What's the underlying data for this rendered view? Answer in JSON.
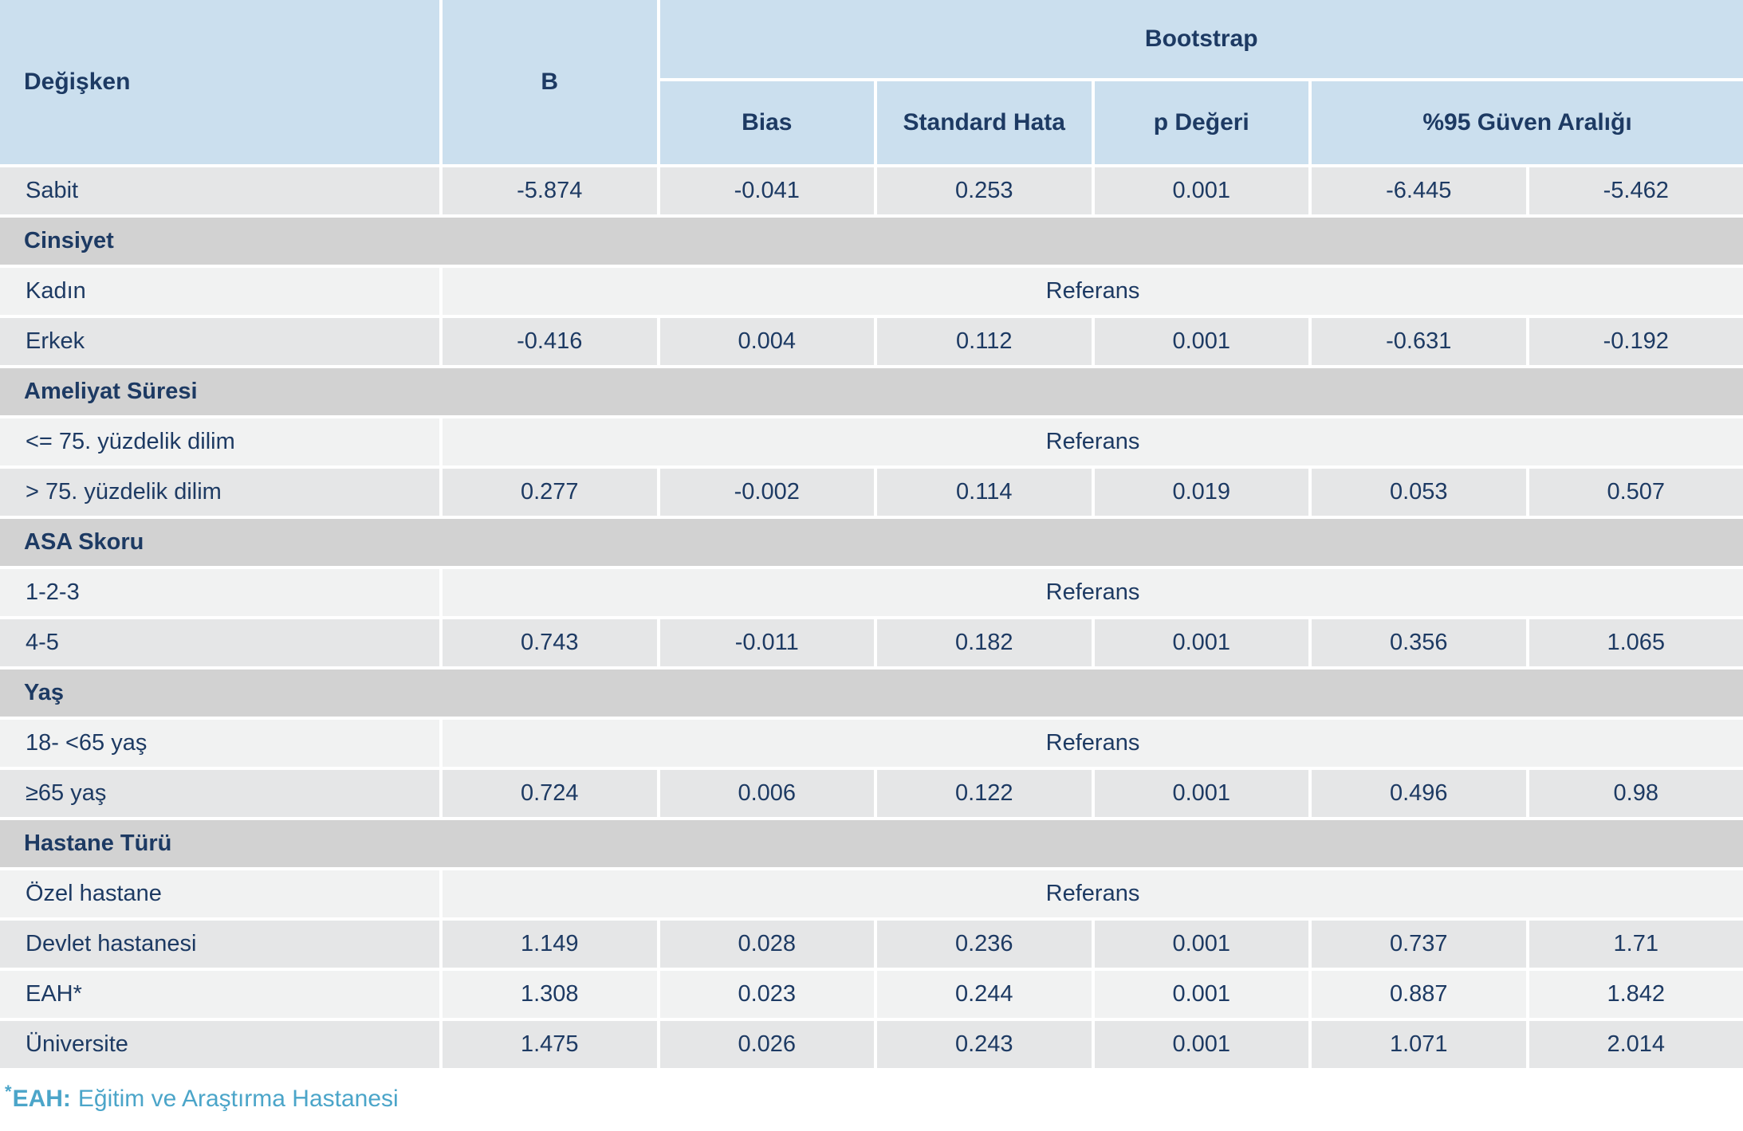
{
  "colors": {
    "header_bg": "#cbdfee",
    "section_bg": "#d2d2d2",
    "row_dark_bg": "#e5e6e7",
    "row_light_bg": "#f1f2f2",
    "text_navy": "#1d3a63",
    "footnote_blue": "#4ba5c9",
    "page_bg": "#ffffff"
  },
  "table": {
    "header": {
      "degisken": "Değişken",
      "b": "B",
      "bootstrap": "Bootstrap",
      "bias": "Bias",
      "standard_hata": "Standard Hata",
      "p_degeri": "p Değeri",
      "ci": "%95 Güven Aralığı"
    },
    "reference_label": "Referans",
    "rows": [
      {
        "type": "data",
        "label": "Sabit",
        "values": [
          "-5.874",
          "-0.041",
          "0.253",
          "0.001",
          "-6.445",
          "-5.462"
        ]
      },
      {
        "type": "section",
        "label": "Cinsiyet"
      },
      {
        "type": "reference",
        "label": "Kadın"
      },
      {
        "type": "data",
        "label": "Erkek",
        "values": [
          "-0.416",
          "0.004",
          "0.112",
          "0.001",
          "-0.631",
          "-0.192"
        ]
      },
      {
        "type": "section",
        "label": "Ameliyat Süresi"
      },
      {
        "type": "reference",
        "label": "<= 75. yüzdelik dilim"
      },
      {
        "type": "data",
        "label": "> 75. yüzdelik dilim",
        "values": [
          "0.277",
          "-0.002",
          "0.114",
          "0.019",
          "0.053",
          "0.507"
        ]
      },
      {
        "type": "section",
        "label": "ASA Skoru"
      },
      {
        "type": "reference",
        "label": "1-2-3"
      },
      {
        "type": "data",
        "label": "4-5",
        "values": [
          "0.743",
          "-0.011",
          "0.182",
          "0.001",
          "0.356",
          "1.065"
        ]
      },
      {
        "type": "section",
        "label": "Yaş"
      },
      {
        "type": "reference",
        "label": "18- <65 yaş"
      },
      {
        "type": "data",
        "label": "≥65 yaş",
        "values": [
          "0.724",
          "0.006",
          "0.122",
          "0.001",
          "0.496",
          "0.98"
        ]
      },
      {
        "type": "section",
        "label": "Hastane Türü"
      },
      {
        "type": "reference",
        "label": "Özel hastane"
      },
      {
        "type": "data",
        "label": "Devlet hastanesi",
        "values": [
          "1.149",
          "0.028",
          "0.236",
          "0.001",
          "0.737",
          "1.71"
        ]
      },
      {
        "type": "data",
        "label": "EAH*",
        "values": [
          "1.308",
          "0.023",
          "0.244",
          "0.001",
          "0.887",
          "1.842"
        ]
      },
      {
        "type": "data",
        "label": "Üniversite",
        "values": [
          "1.475",
          "0.026",
          "0.243",
          "0.001",
          "1.071",
          "2.014"
        ]
      }
    ]
  },
  "footnote": {
    "marker": "*",
    "label": "EAH:",
    "text": "Eğitim ve Araştırma Hastanesi"
  }
}
